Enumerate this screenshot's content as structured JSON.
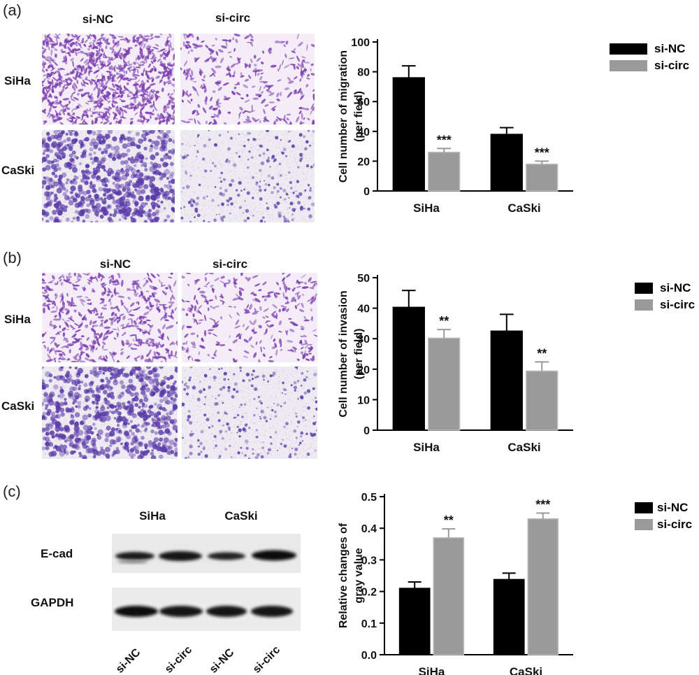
{
  "figure": {
    "panels": [
      {
        "label": "(a)",
        "image_cols": [
          "si-NC",
          "si-circ"
        ],
        "image_rows": [
          "SiHa",
          "CaSki"
        ],
        "chart_index": 0
      },
      {
        "label": "(b)",
        "image_cols": [
          "si-NC",
          "si-circ"
        ],
        "image_rows": [
          "SiHa",
          "CaSki"
        ],
        "chart_index": 1
      },
      {
        "label": "(c)",
        "blot_cols": [
          "SiHa",
          "CaSki"
        ],
        "blot_rows": [
          "E-cad",
          "GAPDH"
        ],
        "lane_labels": [
          "si-NC",
          "si-circ",
          "si-NC",
          "si-circ"
        ],
        "chart_index": 2
      }
    ]
  },
  "colors": {
    "si_nc": "#000000",
    "si_circ": "#9a9a9a",
    "si_circ_border": "#bdbdbd",
    "stain_siha": "#7b3fb0",
    "stain_caski": "#5a3aa8",
    "stain_bg_siha": "#f4ecf6",
    "stain_bg_caski": "#eeeaf2"
  },
  "chart_data": [
    {
      "type": "bar",
      "categories": [
        "SiHa",
        "CaSki"
      ],
      "series": [
        {
          "name": "si-NC",
          "values": [
            76,
            38
          ],
          "errors": [
            8,
            4.5
          ]
        },
        {
          "name": "si-circ",
          "values": [
            26,
            18
          ],
          "errors": [
            2.5,
            2
          ]
        }
      ],
      "annotations": [
        [
          "",
          "***"
        ],
        [
          "",
          "***"
        ]
      ],
      "ylabel": "Cell number of migration\n(per field)",
      "ylim": [
        0,
        100
      ],
      "yticks": [
        "0",
        "20",
        "40",
        "60",
        "80",
        "100"
      ],
      "legend": "top-right"
    },
    {
      "type": "bar",
      "categories": [
        "SiHa",
        "CaSki"
      ],
      "series": [
        {
          "name": "si-NC",
          "values": [
            40.3,
            32.5
          ],
          "errors": [
            5.5,
            5.5
          ]
        },
        {
          "name": "si-circ",
          "values": [
            30.2,
            19.4
          ],
          "errors": [
            2.8,
            3
          ]
        }
      ],
      "annotations": [
        [
          "",
          "**"
        ],
        [
          "",
          "**"
        ]
      ],
      "ylabel": "Cell number of invasion\n(per field)",
      "ylim": [
        0,
        50
      ],
      "yticks": [
        "0",
        "10",
        "20",
        "30",
        "40",
        "50"
      ],
      "legend": "top-right"
    },
    {
      "type": "bar",
      "categories": [
        "SiHa",
        "CaSki"
      ],
      "series": [
        {
          "name": "si-NC",
          "values": [
            0.21,
            0.238
          ],
          "errors": [
            0.02,
            0.02
          ]
        },
        {
          "name": "si-circ",
          "values": [
            0.37,
            0.43
          ],
          "errors": [
            0.028,
            0.018
          ]
        }
      ],
      "annotations": [
        [
          "",
          "**"
        ],
        [
          "",
          "***"
        ]
      ],
      "ylabel": "Relative changes of\ngray value",
      "ylim": [
        0,
        0.5
      ],
      "yticks": [
        "0.0",
        "0.1",
        "0.2",
        "0.3",
        "0.4",
        "0.5"
      ],
      "legend": "top-right"
    }
  ]
}
